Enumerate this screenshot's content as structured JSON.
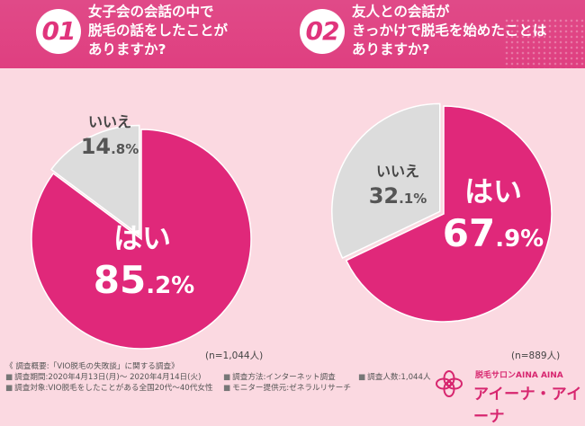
{
  "questions": [
    {
      "number": "01",
      "text": "女子会の会話の中で\n脱毛の話をしたことが\nありますか?"
    },
    {
      "number": "02",
      "text": "友人との会話が\nきっかけで脱毛を始めたことは\nありますか?"
    }
  ],
  "chart_data": [
    {
      "type": "pie",
      "labels": [
        "はい",
        "いいえ"
      ],
      "values": [
        85.2,
        14.8
      ],
      "value_labels": [
        {
          "int": "85",
          "dec": ".2%"
        },
        {
          "int": "14",
          "dec": ".8%"
        }
      ],
      "colors": [
        "#e0287a",
        "#dcdcdc"
      ],
      "sample_note": "(n=1,044人)"
    },
    {
      "type": "pie",
      "labels": [
        "はい",
        "いいえ"
      ],
      "values": [
        67.9,
        32.1
      ],
      "value_labels": [
        {
          "int": "67",
          "dec": ".9%"
        },
        {
          "int": "32",
          "dec": ".1%"
        }
      ],
      "colors": [
        "#e0287a",
        "#dcdcdc"
      ],
      "sample_note": "(n=889人)"
    }
  ],
  "footer": {
    "title": "《 調査概要:「VIO脱毛の失敗談」に関する調査》",
    "period": "調査期間:2020年4月13日(月)～ 2020年4月14日(火)",
    "target": "調査対象:VIO脱毛をしたことがある全国20代～40代女性",
    "method": "調査方法:インターネット調査",
    "provider": "モニター提供元:ゼネラルリサーチ",
    "count": "調査人数:1,044人",
    "brand_small": "脱毛サロンAINA AINA",
    "brand_big": "アイーナ・アイーナ"
  }
}
